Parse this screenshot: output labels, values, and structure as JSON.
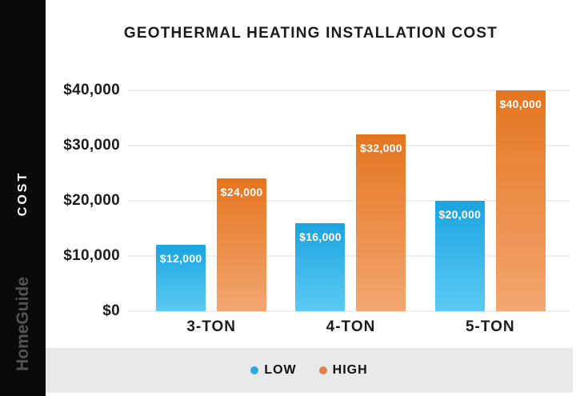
{
  "title": "GEOTHERMAL HEATING INSTALLATION COST",
  "sidebar": {
    "axis_label": "COST",
    "brand": "HomeGuide"
  },
  "chart_data": {
    "type": "bar",
    "title": "GEOTHERMAL HEATING INSTALLATION COST",
    "categories": [
      "3-TON",
      "4-TON",
      "5-TON"
    ],
    "series": [
      {
        "name": "LOW",
        "values": [
          12000,
          16000,
          20000
        ],
        "labels": [
          "$12,000",
          "$16,000",
          "$20,000"
        ],
        "color_top": "#1ba4e0",
        "color_bottom": "#5ccaf4"
      },
      {
        "name": "HIGH",
        "values": [
          24000,
          32000,
          40000
        ],
        "labels": [
          "$24,000",
          "$32,000",
          "$40,000"
        ],
        "color_top": "#e5751f",
        "color_bottom": "#f3a671"
      }
    ],
    "xlabel": "",
    "ylabel": "COST",
    "ylim": [
      0,
      40000
    ],
    "y_ticks": [
      {
        "value": 0,
        "label": "$0"
      },
      {
        "value": 10000,
        "label": "$10,000"
      },
      {
        "value": 20000,
        "label": "$20,000"
      },
      {
        "value": 30000,
        "label": "$30,000"
      },
      {
        "value": 40000,
        "label": "$40,000"
      }
    ],
    "grid": true,
    "legend_position": "bottom"
  },
  "legend": {
    "items": [
      {
        "label": "LOW",
        "color": "#2fa9dc"
      },
      {
        "label": "HIGH",
        "color": "#d9824f"
      }
    ]
  },
  "colors": {
    "sidebar_bg": "#0a0a0a",
    "footer_bg": "#e9e9e9",
    "gridline": "#eeeeee",
    "text": "#1c1c1c",
    "bar_value_text": "#ffffff"
  }
}
